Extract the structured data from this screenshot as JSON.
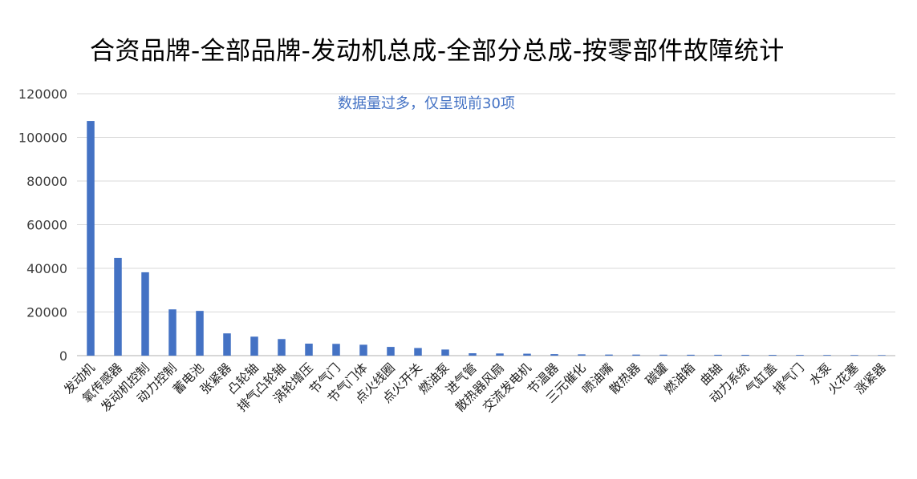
{
  "chart_data": {
    "type": "bar",
    "title": "合资品牌-全部品牌-发动机总成-全部分总成-按零部件故障统计",
    "subtitle": "数据量过多，仅呈现前30项",
    "xlabel": "",
    "ylabel": "",
    "ylim": [
      0,
      120000
    ],
    "yticks": [
      0,
      20000,
      40000,
      60000,
      80000,
      100000,
      120000
    ],
    "grid": true,
    "legend": "none",
    "bar_color": "#4472C4",
    "grid_color": "#D9D9D9",
    "categories": [
      "发动机",
      "氧传感器",
      "发动机控制",
      "动力控制",
      "蓄电池",
      "张紧器",
      "凸轮轴",
      "排气凸轮轴",
      "涡轮增压",
      "节气门",
      "节气门体",
      "点火线圈",
      "点火开关",
      "燃油泵",
      "进气管",
      "散热器风扇",
      "交流发电机",
      "节温器",
      "三元催化",
      "喷油嘴",
      "散热器",
      "碳罐",
      "燃油箱",
      "曲轴",
      "动力系统",
      "气缸盖",
      "排气门",
      "水泵",
      "火花塞",
      "涨紧器"
    ],
    "values": [
      107500,
      44800,
      38200,
      21200,
      20500,
      10200,
      8700,
      7600,
      5500,
      5400,
      5000,
      4000,
      3500,
      2800,
      1100,
      1000,
      900,
      700,
      600,
      500,
      480,
      450,
      420,
      400,
      380,
      350,
      330,
      300,
      280,
      250
    ]
  }
}
